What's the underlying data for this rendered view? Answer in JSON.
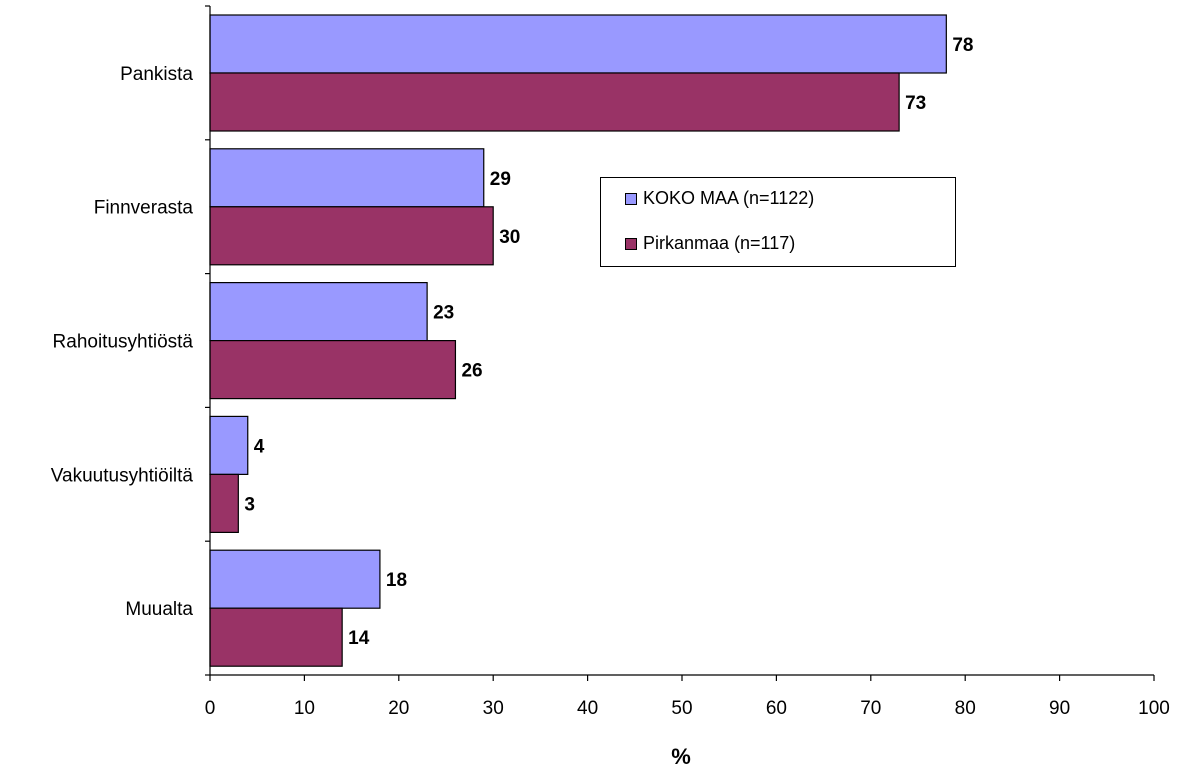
{
  "chart_data": {
    "type": "bar",
    "orientation": "horizontal",
    "categories": [
      "Pankista",
      "Finnverasta",
      "Rahoitusyhtiöstä",
      "Vakuutusyhtiöiltä",
      "Muualta"
    ],
    "series": [
      {
        "name": "KOKO MAA (n=1122)",
        "values": [
          78,
          29,
          23,
          4,
          18
        ],
        "color": "#9999FF"
      },
      {
        "name": "Pirkanmaa (n=117)",
        "values": [
          73,
          30,
          26,
          3,
          14
        ],
        "color": "#993366"
      }
    ],
    "xlabel": "%",
    "xlim": [
      0,
      100
    ],
    "xticks": [
      0,
      10,
      20,
      30,
      40,
      50,
      60,
      70,
      80,
      90,
      100
    ],
    "data_labels": true,
    "grid": false,
    "legend_position": "right-center"
  }
}
